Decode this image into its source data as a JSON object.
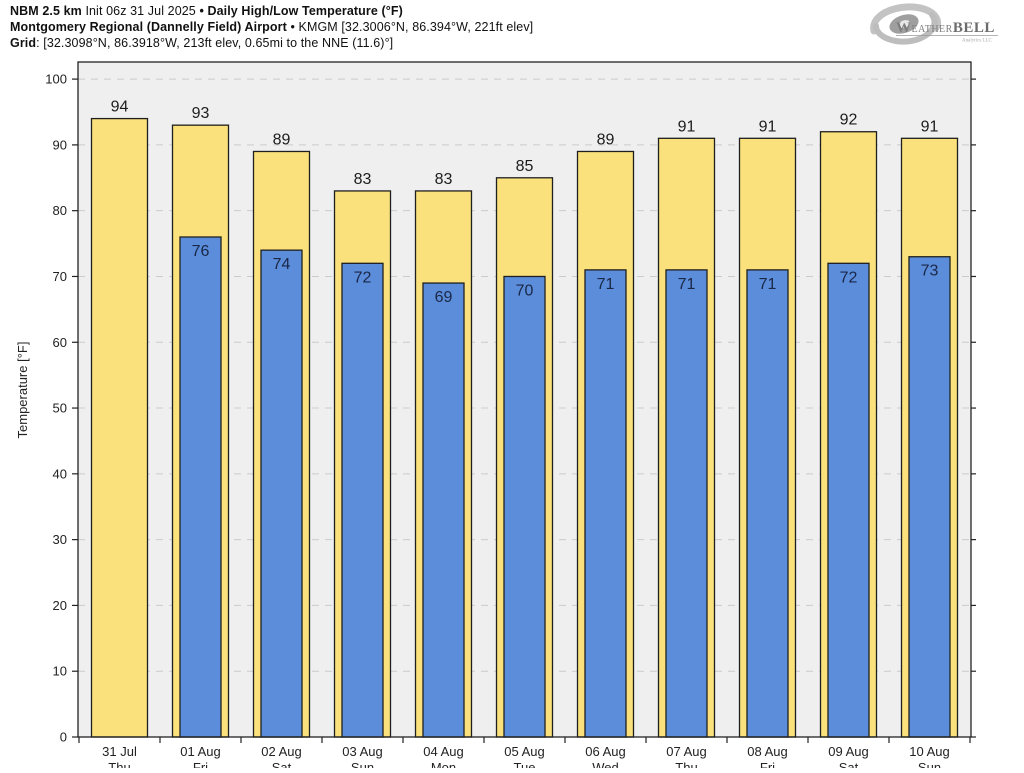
{
  "header": {
    "line1": {
      "model": "NBM 2.5 km",
      "init": "Init 06z 31 Jul 2025",
      "product": "• Daily High/Low Temperature (°F)"
    },
    "line2": {
      "station": "Montgomery Regional (Dannelly Field) Airport",
      "details": "• KMGM [32.3006°N, 86.394°W, 221ft elev]"
    },
    "line3": {
      "label": "Grid",
      "details": ": [32.3098°N, 86.3918°W, 213ft elev, 0.65mi to the NNE (11.6)°]"
    }
  },
  "logo": {
    "brand_w": "W",
    "brand_eather": "EATHER",
    "brand_bell": "BELL",
    "sub": "Analytics LLC"
  },
  "chart_data": {
    "type": "bar",
    "title": "NBM 2.5 km Daily High/Low Temperature (°F) — Montgomery Regional (Dannelly Field) Airport KMGM",
    "ylabel": "Temperature [°F]",
    "xlabel": "",
    "ylim": [
      0,
      102.6
    ],
    "yticks": [
      0,
      10,
      20,
      30,
      40,
      50,
      60,
      70,
      80,
      90,
      100
    ],
    "grid": true,
    "legend": "none",
    "plot_bg": "#EFEFEF",
    "grid_color": "#CCCCCC",
    "axis_color": "#222222",
    "categories": [
      {
        "date": "31 Jul",
        "day": "Thu"
      },
      {
        "date": "01 Aug",
        "day": "Fri"
      },
      {
        "date": "02 Aug",
        "day": "Sat"
      },
      {
        "date": "03 Aug",
        "day": "Sun"
      },
      {
        "date": "04 Aug",
        "day": "Mon"
      },
      {
        "date": "05 Aug",
        "day": "Tue"
      },
      {
        "date": "06 Aug",
        "day": "Wed"
      },
      {
        "date": "07 Aug",
        "day": "Thu"
      },
      {
        "date": "08 Aug",
        "day": "Fri"
      },
      {
        "date": "09 Aug",
        "day": "Sat"
      },
      {
        "date": "10 Aug",
        "day": "Sun"
      }
    ],
    "series": [
      {
        "name": "Daily High",
        "color": "#FAE17C",
        "stroke": "#1F1F1F",
        "label_color": "#1C1C1C",
        "values": [
          94,
          93,
          89,
          83,
          83,
          85,
          89,
          91,
          91,
          92,
          91
        ]
      },
      {
        "name": "Daily Low",
        "color": "#5B8DDB",
        "stroke": "#1F1F1F",
        "label_color": "#1A2745",
        "values": [
          null,
          76,
          74,
          72,
          69,
          70,
          71,
          71,
          71,
          72,
          73
        ]
      }
    ]
  }
}
